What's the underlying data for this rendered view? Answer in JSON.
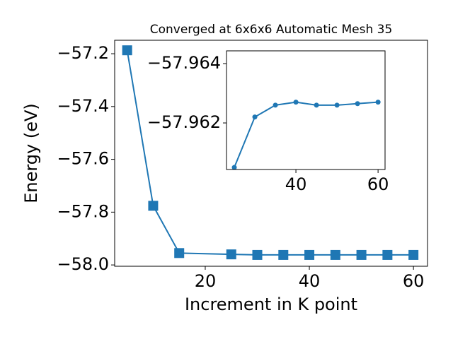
{
  "chart_data": [
    {
      "type": "line",
      "title": "Converged at 6x6x6 Automatic Mesh 35",
      "xlabel": "Increment in K point",
      "ylabel": "Energy (eV)",
      "x": [
        5,
        10,
        15,
        25,
        30,
        35,
        40,
        45,
        50,
        55,
        60
      ],
      "values": [
        -57.187,
        -57.776,
        -57.955,
        -57.96,
        -57.962,
        -57.962,
        -57.962,
        -57.962,
        -57.962,
        -57.962,
        -57.962
      ],
      "color": "#1f77b4",
      "marker": "square",
      "xlim": [
        2.6,
        62.7
      ],
      "ylim": [
        -58.005,
        -57.149
      ],
      "xticks": [
        20,
        40,
        60
      ],
      "yticks": [
        {
          "value": -58.0,
          "label": "−58.0"
        },
        {
          "value": -57.8,
          "label": "−57.8"
        },
        {
          "value": -57.6,
          "label": "−57.6"
        },
        {
          "value": -57.4,
          "label": "−57.4"
        },
        {
          "value": -57.2,
          "label": "−57.2"
        }
      ]
    },
    {
      "type": "line",
      "x": [
        25,
        30,
        35,
        40,
        45,
        50,
        55,
        60
      ],
      "values": [
        -57.9605,
        -57.9622,
        -57.9626,
        -57.9627,
        -57.9626,
        -57.9626,
        -57.96265,
        -57.9627
      ],
      "color": "#1f77b4",
      "marker": "circle",
      "xlim": [
        23.1,
        61.7
      ],
      "ylim": [
        -57.96043,
        -57.96443
      ],
      "xticks": [
        40,
        60
      ],
      "yticks": [
        {
          "value": -57.962,
          "label": "−57.962"
        },
        {
          "value": -57.964,
          "label": "−57.964"
        }
      ]
    }
  ]
}
